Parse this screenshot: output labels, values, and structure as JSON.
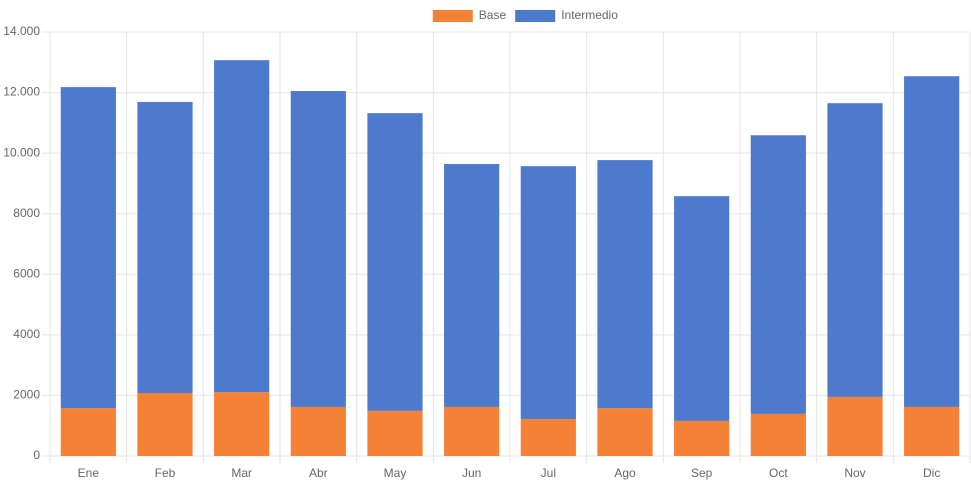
{
  "chart_data": {
    "type": "stacked-bar",
    "categories": [
      "Ene",
      "Feb",
      "Mar",
      "Abr",
      "May",
      "Jun",
      "Jul",
      "Ago",
      "Sep",
      "Oct",
      "Nov",
      "Dic"
    ],
    "series": [
      {
        "name": "Base",
        "color": "#f58136",
        "values": [
          1580,
          2080,
          2110,
          1620,
          1490,
          1620,
          1220,
          1580,
          1160,
          1390,
          1950,
          1620
        ]
      },
      {
        "name": "Intermedio",
        "color": "#4e7acd",
        "values": [
          10600,
          9610,
          10960,
          10430,
          9830,
          8020,
          8350,
          8190,
          7420,
          9200,
          9700,
          10920
        ]
      }
    ],
    "ylim": [
      0,
      14000
    ],
    "yticks": [
      0,
      2000,
      4000,
      6000,
      8000,
      {
        "value": 10000,
        "label": "10.000"
      },
      {
        "value": 12000,
        "label": "12.000"
      },
      {
        "value": 14000,
        "label": "14.000"
      }
    ],
    "grid": true,
    "legend": "top"
  }
}
